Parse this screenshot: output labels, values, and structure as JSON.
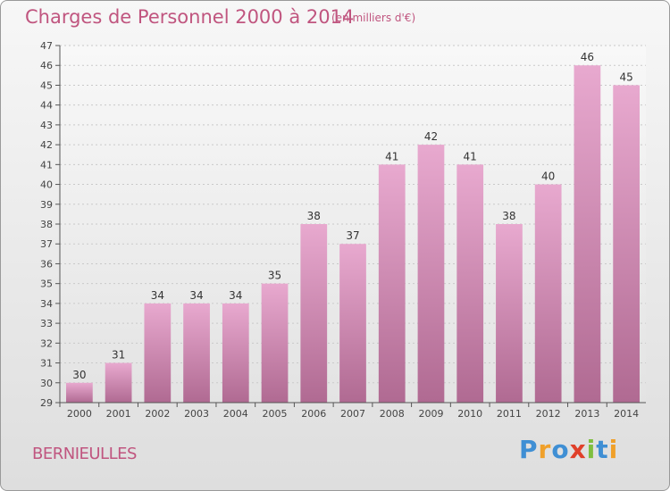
{
  "chart_data": {
    "type": "bar",
    "title": "Charges de Personnel 2000 à 2014",
    "subtitle": "(en milliers d'€)",
    "categories": [
      "2000",
      "2001",
      "2002",
      "2003",
      "2004",
      "2005",
      "2006",
      "2007",
      "2008",
      "2009",
      "2010",
      "2011",
      "2012",
      "2013",
      "2014"
    ],
    "values": [
      30,
      31,
      34,
      34,
      34,
      35,
      38,
      37,
      41,
      42,
      41,
      38,
      40,
      46,
      45
    ],
    "ylim": [
      29,
      47
    ],
    "yticks": [
      29,
      30,
      31,
      32,
      33,
      34,
      35,
      36,
      37,
      38,
      39,
      40,
      41,
      42,
      43,
      44,
      45,
      46,
      47
    ],
    "grid": true,
    "bar_color": "#d27fae"
  },
  "footer": {
    "town": "BERNIEULLES",
    "logo": "Proxiti"
  }
}
